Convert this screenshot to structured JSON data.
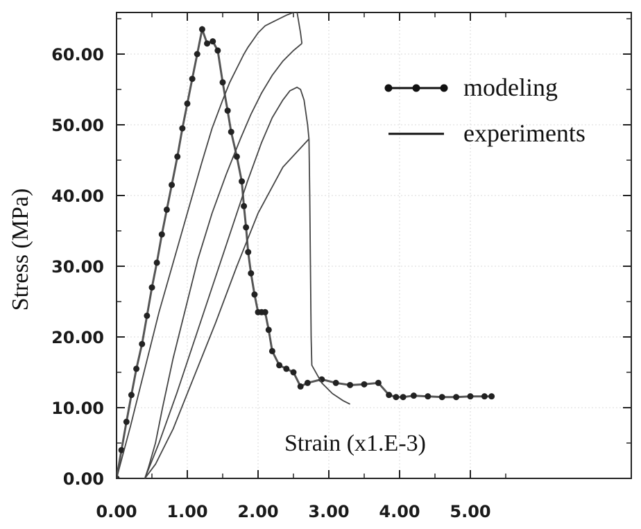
{
  "chart_data": {
    "type": "line",
    "title": "",
    "xlabel": "Strain (x1.E-3)",
    "ylabel": "Stress (MPa)",
    "xlim": [
      0,
      5.3
    ],
    "ylim": [
      0,
      65
    ],
    "x_ticks": [
      0,
      1,
      2,
      3,
      4,
      5
    ],
    "y_ticks": [
      0,
      10,
      20,
      30,
      40,
      50,
      60
    ],
    "x_tick_labels": [
      "0.00",
      "1.00",
      "2.00",
      "3.00",
      "4.00",
      "5.00"
    ],
    "y_tick_labels": [
      "0.00",
      "10.00",
      "20.00",
      "30.00",
      "40.00",
      "50.00",
      "60.00"
    ],
    "grid": true,
    "legend_position": "top-right",
    "legend": [
      {
        "name": "modeling",
        "style": "line-with-dots"
      },
      {
        "name": "experiments",
        "style": "line"
      }
    ],
    "series": [
      {
        "name": "modeling",
        "color": "#555555",
        "marker": "dot",
        "x": [
          0.0,
          0.07,
          0.14,
          0.21,
          0.28,
          0.36,
          0.43,
          0.5,
          0.57,
          0.64,
          0.71,
          0.78,
          0.86,
          0.93,
          1.0,
          1.07,
          1.14,
          1.21,
          1.28,
          1.36,
          1.43,
          1.5,
          1.57,
          1.62,
          1.7,
          1.77,
          1.8,
          1.83,
          1.86,
          1.9,
          1.95,
          2.0,
          2.05,
          2.1,
          2.15,
          2.2,
          2.3,
          2.4,
          2.5,
          2.6,
          2.7,
          2.9,
          3.1,
          3.3,
          3.5,
          3.7,
          3.85,
          3.95,
          4.05,
          4.2,
          4.4,
          4.6,
          4.8,
          5.0,
          5.2,
          5.3
        ],
        "y": [
          0.0,
          4.0,
          8.0,
          11.8,
          15.5,
          19.0,
          23.0,
          27.0,
          30.5,
          34.5,
          38.0,
          41.5,
          45.5,
          49.5,
          53.0,
          56.5,
          60.0,
          63.5,
          61.5,
          61.8,
          60.5,
          56.0,
          52.0,
          49.0,
          45.5,
          42.0,
          38.5,
          35.5,
          32.0,
          29.0,
          26.0,
          23.5,
          23.5,
          23.5,
          21.0,
          18.0,
          16.0,
          15.5,
          15.0,
          13.0,
          13.5,
          14.0,
          13.5,
          13.2,
          13.3,
          13.5,
          11.8,
          11.5,
          11.5,
          11.7,
          11.6,
          11.5,
          11.5,
          11.6,
          11.6,
          11.6
        ]
      },
      {
        "name": "experiments",
        "color": "#444444",
        "marker": "none",
        "segments": [
          {
            "x": [
              0.0,
              0.2,
              0.4,
              0.6,
              0.8,
              1.0,
              1.2,
              1.35,
              1.5,
              1.6,
              1.7,
              1.8,
              1.86,
              1.93,
              2.0,
              2.1,
              2.2,
              2.3,
              2.4,
              2.48,
              2.55,
              2.6,
              2.62
            ],
            "y": [
              0.0,
              7.5,
              15.5,
              23.5,
              30.5,
              37.5,
              44.5,
              49.5,
              53.5,
              56.0,
              58.0,
              60.0,
              61.0,
              62.0,
              63.0,
              64.0,
              64.5,
              65.0,
              65.5,
              65.8,
              66.0,
              63.0,
              61.5
            ]
          },
          {
            "x": [
              2.62,
              2.5,
              2.35,
              2.2,
              2.05,
              1.9,
              1.75,
              1.55,
              1.35,
              1.15,
              0.95,
              0.8,
              0.65,
              0.55,
              0.45,
              0.4
            ],
            "y": [
              61.5,
              60.5,
              59.0,
              57.0,
              54.5,
              51.5,
              48.0,
              43.0,
              37.5,
              31.0,
              23.0,
              17.0,
              10.0,
              5.0,
              1.5,
              0.0
            ]
          },
          {
            "x": [
              0.4,
              0.6,
              0.85,
              1.1,
              1.35,
              1.6,
              1.85,
              2.05,
              2.2,
              2.35,
              2.45,
              2.55,
              2.6,
              2.65,
              2.7,
              2.72
            ],
            "y": [
              0.0,
              5.0,
              12.0,
              19.5,
              27.0,
              34.5,
              42.0,
              47.5,
              51.0,
              53.5,
              54.8,
              55.3,
              55.0,
              53.5,
              50.0,
              48.0
            ]
          },
          {
            "x": [
              2.72,
              2.73,
              2.74,
              2.75,
              2.76,
              2.9,
              3.05,
              3.2,
              3.3
            ],
            "y": [
              48.0,
              40.0,
              30.0,
              20.0,
              16.0,
              13.5,
              12.0,
              11.0,
              10.5
            ]
          },
          {
            "x": [
              2.72,
              2.35,
              2.0,
              1.7,
              1.4,
              1.1,
              0.8,
              0.55,
              0.4
            ],
            "y": [
              48.0,
              44.0,
              37.5,
              30.0,
              22.0,
              14.5,
              7.0,
              2.0,
              0.0
            ]
          }
        ]
      }
    ]
  }
}
